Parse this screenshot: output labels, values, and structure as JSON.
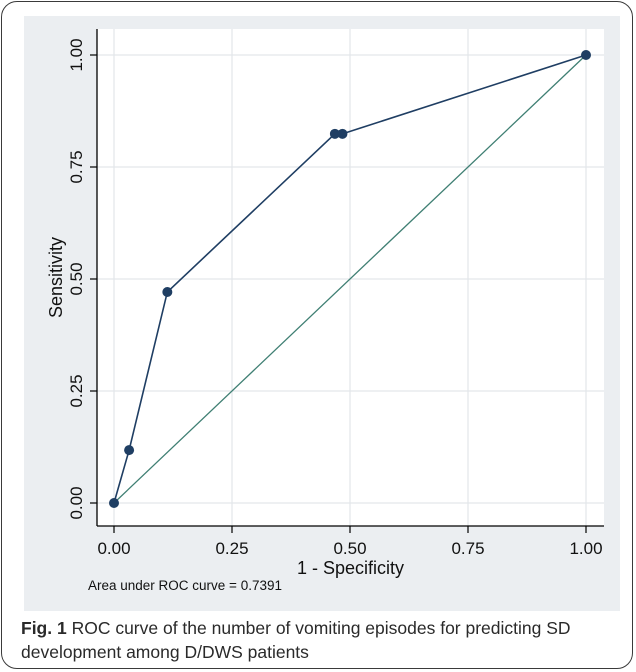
{
  "caption": {
    "label": "Fig. 1",
    "text": " ROC curve of the number of vomiting episodes for predicting SD development among D/DWS patients"
  },
  "colors": {
    "panel_background": "#ebeef1",
    "plot_background": "#ffffff",
    "roc_curve": "#1f3e63",
    "reference_line": "#3f7f73",
    "grid": "#e3e7ea"
  },
  "chart_data": {
    "type": "line",
    "xlabel": "1 - Specificity",
    "ylabel": "Sensitivity",
    "xlim": [
      0,
      1
    ],
    "ylim": [
      0,
      1
    ],
    "x_ticks": [
      "0.00",
      "0.25",
      "0.50",
      "0.75",
      "1.00"
    ],
    "y_ticks": [
      "0.00",
      "0.25",
      "0.50",
      "0.75",
      "1.00"
    ],
    "grid": true,
    "annotation": "Area under ROC curve = 0.7391",
    "series": [
      {
        "x": [
          0.0,
          0.032,
          0.113,
          0.468,
          0.484,
          1.0
        ],
        "y": [
          0.0,
          0.118,
          0.471,
          0.824,
          0.824,
          1.0
        ]
      }
    ],
    "reference_line": {
      "x": [
        0,
        1
      ],
      "y": [
        0,
        1
      ]
    }
  }
}
